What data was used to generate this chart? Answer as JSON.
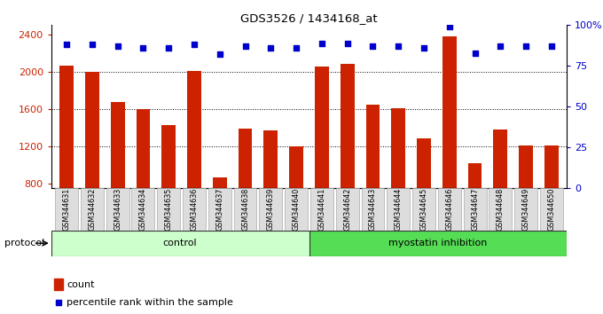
{
  "title": "GDS3526 / 1434168_at",
  "samples": [
    "GSM344631",
    "GSM344632",
    "GSM344633",
    "GSM344634",
    "GSM344635",
    "GSM344636",
    "GSM344637",
    "GSM344638",
    "GSM344639",
    "GSM344640",
    "GSM344641",
    "GSM344642",
    "GSM344643",
    "GSM344644",
    "GSM344645",
    "GSM344646",
    "GSM344647",
    "GSM344648",
    "GSM344649",
    "GSM344650"
  ],
  "counts": [
    2070,
    2000,
    1680,
    1600,
    1430,
    2010,
    870,
    1390,
    1370,
    1200,
    2060,
    2080,
    1650,
    1610,
    1290,
    2380,
    1020,
    1380,
    1210,
    1210
  ],
  "percentiles": [
    88,
    88,
    87,
    86,
    86,
    88,
    82,
    87,
    86,
    86,
    89,
    89,
    87,
    87,
    86,
    99,
    83,
    87,
    87,
    87
  ],
  "bar_color": "#cc2200",
  "dot_color": "#0000cc",
  "ylim_left": [
    750,
    2500
  ],
  "ylim_right": [
    0,
    100
  ],
  "yticks_left": [
    800,
    1200,
    1600,
    2000,
    2400
  ],
  "yticks_right": [
    0,
    25,
    50,
    75,
    100
  ],
  "control_count": 10,
  "group1_label": "control",
  "group2_label": "myostatin inhibition",
  "group1_color": "#ccffcc",
  "group2_color": "#55dd55",
  "protocol_label": "protocol",
  "legend_count_label": "count",
  "legend_pct_label": "percentile rank within the sample",
  "tick_label_color_left": "#cc2200",
  "tick_label_color_right": "#0000cc",
  "xtick_bg_color": "#dddddd"
}
